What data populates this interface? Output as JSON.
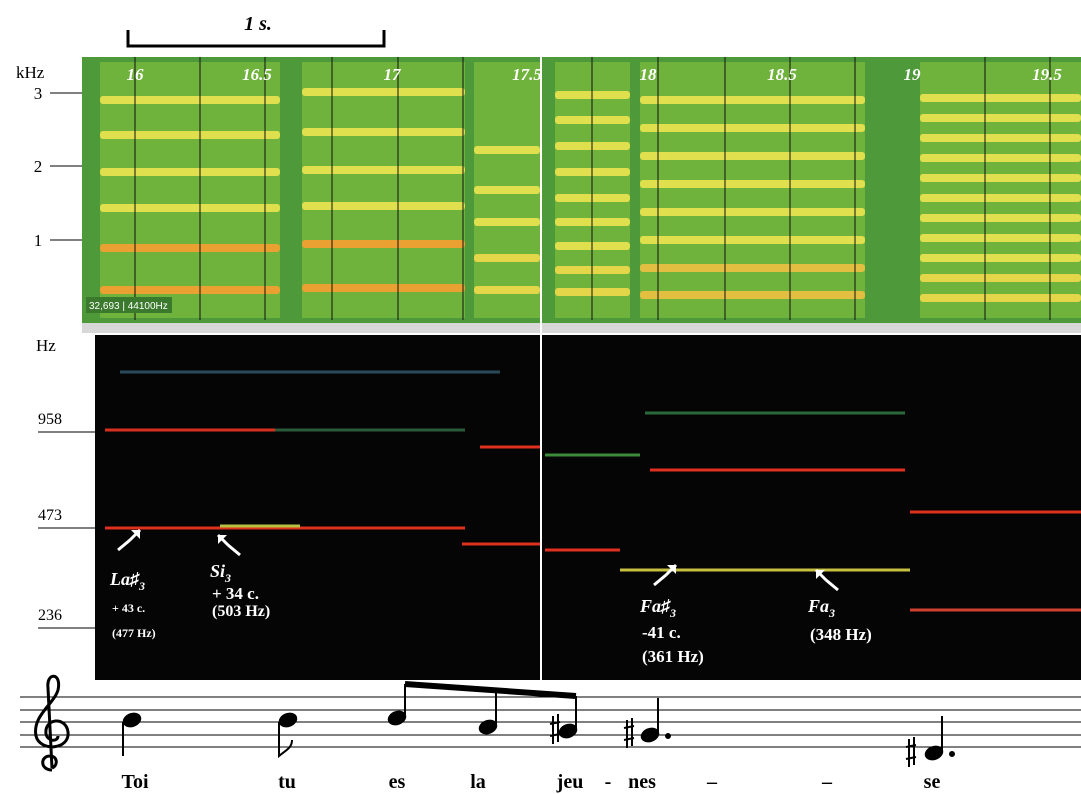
{
  "scale_bar": {
    "label": "1 s."
  },
  "spectrogram": {
    "axis_unit": "kHz",
    "yticks": [
      "3",
      "2",
      "1"
    ],
    "time_labels": [
      "16",
      "16.5",
      "17",
      "17.5",
      "18",
      "18.5",
      "19",
      "19.5"
    ],
    "info": "32,693 | 44100Hz"
  },
  "pitch": {
    "axis_unit": "Hz",
    "yticks": [
      "958",
      "473",
      "236"
    ]
  },
  "annotations": [
    {
      "note": "La♯",
      "octave": "3",
      "cents": "+ 43 c.",
      "freq": "(477 Hz)"
    },
    {
      "note": "Si",
      "octave": "3",
      "cents": "+ 34 c.",
      "freq": "(503 Hz)"
    },
    {
      "note": "Fa♯",
      "octave": "3",
      "cents": "-41 c.",
      "freq": "(361 Hz)"
    },
    {
      "note": "Fa",
      "octave": "3",
      "freq": "(348 Hz)"
    }
  ],
  "lyrics": [
    "Toi",
    "tu",
    "es",
    "la",
    "jeu",
    "-",
    "nes",
    "–",
    "–",
    "se"
  ]
}
